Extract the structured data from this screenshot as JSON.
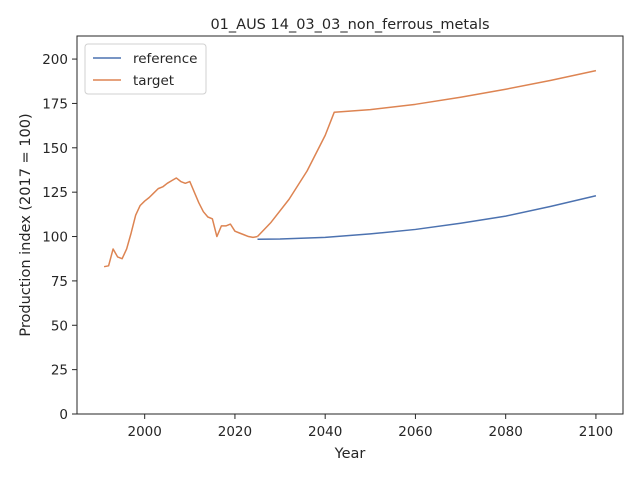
{
  "chart_data": {
    "type": "line",
    "title": "01_AUS 14_03_03_non_ferrous_metals",
    "xlabel": "Year",
    "ylabel": "Production index (2017 = 100)",
    "xlim": [
      1985,
      2106
    ],
    "ylim": [
      0,
      213
    ],
    "xticks": [
      2000,
      2020,
      2040,
      2060,
      2080,
      2100
    ],
    "yticks": [
      0,
      25,
      50,
      75,
      100,
      125,
      150,
      175,
      200
    ],
    "grid": false,
    "legend_position": "top-left",
    "series": [
      {
        "name": "reference",
        "color": "#4c72b0",
        "x": [
          2025,
          2030,
          2040,
          2050,
          2060,
          2070,
          2080,
          2090,
          2100
        ],
        "y": [
          98.5,
          98.6,
          99.5,
          101.5,
          104.0,
          107.5,
          111.5,
          117.0,
          123.0
        ]
      },
      {
        "name": "target",
        "color": "#dd8452",
        "x": [
          2025,
          2028,
          2032,
          2036,
          2040,
          2042,
          2050,
          2060,
          2070,
          2080,
          2090,
          2100
        ],
        "y": [
          100,
          108,
          121,
          137,
          157,
          170,
          171.5,
          174.5,
          178.5,
          183,
          188,
          193.5
        ]
      }
    ],
    "shared_history": {
      "color": "#dd8452",
      "x": [
        1991,
        1992,
        1993,
        1994,
        1995,
        1996,
        1997,
        1998,
        1999,
        2000,
        2001,
        2002,
        2003,
        2004,
        2005,
        2006,
        2007,
        2008,
        2009,
        2010,
        2011,
        2012,
        2013,
        2014,
        2015,
        2016,
        2017,
        2018,
        2019,
        2020,
        2021,
        2022,
        2023,
        2024,
        2025
      ],
      "y": [
        83,
        83.5,
        93,
        88.5,
        87.5,
        93,
        102,
        112,
        117.5,
        120,
        122,
        124.5,
        127,
        128,
        130,
        131.5,
        133,
        131,
        130,
        131,
        125,
        119,
        114,
        111,
        110,
        100,
        106,
        106,
        107,
        103,
        102,
        101,
        100,
        99.5,
        100
      ]
    }
  }
}
